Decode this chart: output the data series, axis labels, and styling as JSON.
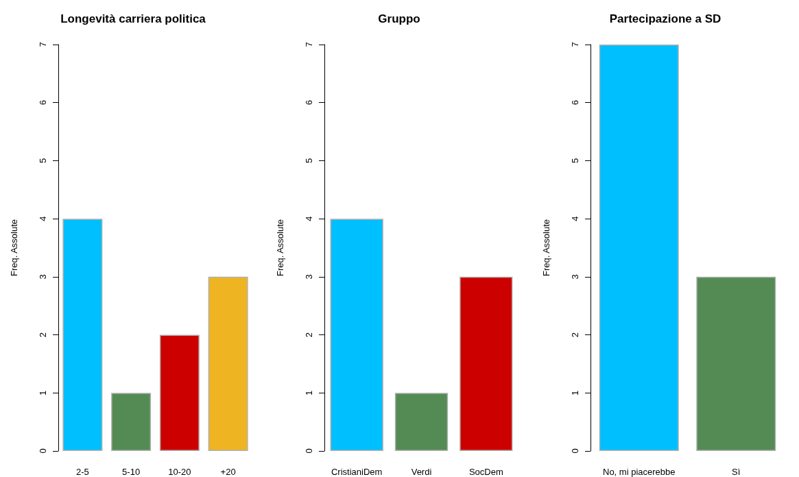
{
  "chart_data": [
    {
      "type": "bar",
      "title": "Longevità carriera politica",
      "ylabel": "Freq. Assolute",
      "categories": [
        "2-5",
        "5-10",
        "10-20",
        "+20"
      ],
      "values": [
        4,
        1,
        2,
        3
      ],
      "colors": [
        "#00bfff",
        "#548b54",
        "#cd0000",
        "#eeb422"
      ],
      "ylim": [
        0,
        7
      ],
      "yticks": [
        0,
        1,
        2,
        3,
        4,
        5,
        6,
        7
      ],
      "grid": false
    },
    {
      "type": "bar",
      "title": "Gruppo",
      "ylabel": "Freq. Assolute",
      "categories": [
        "CristianiDem",
        "Verdi",
        "SocDem"
      ],
      "values": [
        4,
        1,
        3
      ],
      "colors": [
        "#00bfff",
        "#548b54",
        "#cd0000"
      ],
      "ylim": [
        0,
        7
      ],
      "yticks": [
        0,
        1,
        2,
        3,
        4,
        5,
        6,
        7
      ],
      "grid": false
    },
    {
      "type": "bar",
      "title": "Partecipazione a SD",
      "ylabel": "Freq. Assolute",
      "categories": [
        "No, mi piacerebbe",
        "Sì"
      ],
      "values": [
        7,
        3
      ],
      "colors": [
        "#00bfff",
        "#548b54"
      ],
      "ylim": [
        0,
        7
      ],
      "yticks": [
        0,
        1,
        2,
        3,
        4,
        5,
        6,
        7
      ],
      "grid": false
    }
  ]
}
